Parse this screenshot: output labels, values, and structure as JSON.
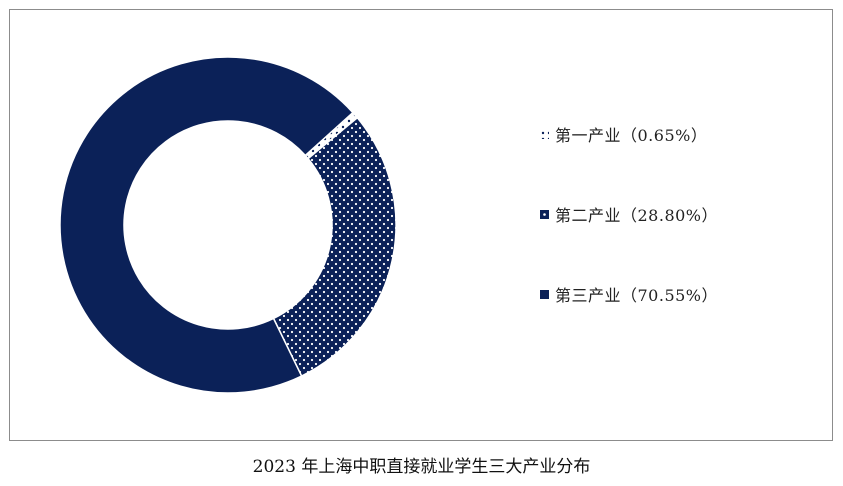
{
  "chart_data": {
    "type": "pie",
    "variant": "donut",
    "title": "2023 年上海中职直接就业学生三大产业分布",
    "series": [
      {
        "name": "第一产业",
        "value": 0.65,
        "label": "第一产业（0.65%）",
        "color": "#ffffff",
        "pattern": "dots-sparse"
      },
      {
        "name": "第二产业",
        "value": 28.8,
        "label": "第二产业（28.80%）",
        "color": "#0b2158",
        "pattern": "dots"
      },
      {
        "name": "第三产业",
        "value": 70.55,
        "label": "第三产业（70.55%）",
        "color": "#0b2158",
        "pattern": "solid"
      }
    ],
    "legend": "right",
    "unit": "%"
  }
}
